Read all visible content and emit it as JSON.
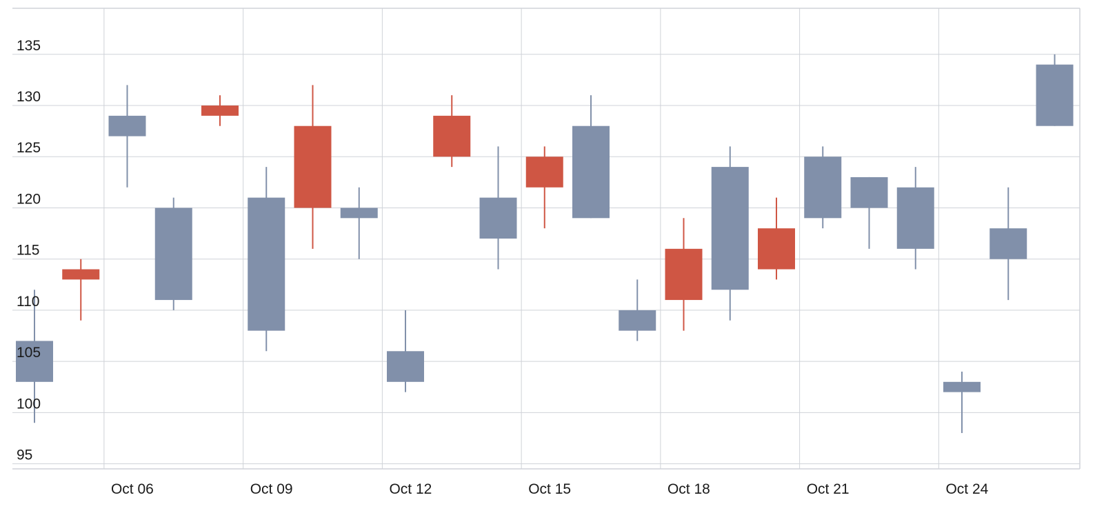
{
  "chart_data": {
    "type": "candlestick",
    "title": "",
    "xlabel": "",
    "ylabel": "",
    "ylim": [
      94.5,
      139.5
    ],
    "grid": true,
    "colors": {
      "up": "#8190AA",
      "down": "#CF5644",
      "grid": "#cfd2d8",
      "axis_text": "#1a1a1a"
    },
    "y_ticks": [
      {
        "value": 95,
        "label": "95"
      },
      {
        "value": 100,
        "label": "100"
      },
      {
        "value": 105,
        "label": "105"
      },
      {
        "value": 110,
        "label": "110"
      },
      {
        "value": 115,
        "label": "115"
      },
      {
        "value": 120,
        "label": "120"
      },
      {
        "value": 125,
        "label": "125"
      },
      {
        "value": 130,
        "label": "130"
      },
      {
        "value": 135,
        "label": "135"
      }
    ],
    "x_ticks": [
      {
        "date": "Oct 06",
        "label": "Oct 06"
      },
      {
        "date": "Oct 09",
        "label": "Oct 09"
      },
      {
        "date": "Oct 12",
        "label": "Oct 12"
      },
      {
        "date": "Oct 15",
        "label": "Oct 15"
      },
      {
        "date": "Oct 18",
        "label": "Oct 18"
      },
      {
        "date": "Oct 21",
        "label": "Oct 21"
      },
      {
        "date": "Oct 24",
        "label": "Oct 24"
      }
    ],
    "x_range": [
      "Oct 04",
      "Oct 27"
    ],
    "candles": [
      {
        "date": "Oct 04",
        "open": 103,
        "high": 112,
        "low": 99,
        "close": 107
      },
      {
        "date": "Oct 05",
        "open": 114,
        "high": 115,
        "low": 109,
        "close": 113
      },
      {
        "date": "Oct 06",
        "open": 127,
        "high": 132,
        "low": 122,
        "close": 129
      },
      {
        "date": "Oct 07",
        "open": 111,
        "high": 121,
        "low": 110,
        "close": 120
      },
      {
        "date": "Oct 08",
        "open": 130,
        "high": 131,
        "low": 128,
        "close": 129
      },
      {
        "date": "Oct 09",
        "open": 108,
        "high": 124,
        "low": 106,
        "close": 121
      },
      {
        "date": "Oct 10",
        "open": 128,
        "high": 132,
        "low": 116,
        "close": 120
      },
      {
        "date": "Oct 11",
        "open": 119,
        "high": 122,
        "low": 115,
        "close": 120
      },
      {
        "date": "Oct 12",
        "open": 103,
        "high": 110,
        "low": 102,
        "close": 106
      },
      {
        "date": "Oct 13",
        "open": 129,
        "high": 131,
        "low": 124,
        "close": 125
      },
      {
        "date": "Oct 14",
        "open": 117,
        "high": 126,
        "low": 114,
        "close": 121
      },
      {
        "date": "Oct 15",
        "open": 125,
        "high": 126,
        "low": 118,
        "close": 122
      },
      {
        "date": "Oct 16",
        "open": 119,
        "high": 131,
        "low": 119,
        "close": 128
      },
      {
        "date": "Oct 17",
        "open": 108,
        "high": 113,
        "low": 107,
        "close": 110
      },
      {
        "date": "Oct 18",
        "open": 116,
        "high": 119,
        "low": 108,
        "close": 111
      },
      {
        "date": "Oct 19",
        "open": 112,
        "high": 126,
        "low": 109,
        "close": 124
      },
      {
        "date": "Oct 20",
        "open": 118,
        "high": 121,
        "low": 113,
        "close": 114
      },
      {
        "date": "Oct 21",
        "open": 119,
        "high": 126,
        "low": 118,
        "close": 125
      },
      {
        "date": "Oct 22",
        "open": 120,
        "high": 123,
        "low": 116,
        "close": 123
      },
      {
        "date": "Oct 23",
        "open": 116,
        "high": 124,
        "low": 114,
        "close": 122
      },
      {
        "date": "Oct 24",
        "open": 102,
        "high": 104,
        "low": 98,
        "close": 103
      },
      {
        "date": "Oct 25",
        "open": 115,
        "high": 122,
        "low": 111,
        "close": 118
      },
      {
        "date": "Oct 26",
        "open": 128,
        "high": 135,
        "low": 128,
        "close": 134
      }
    ]
  }
}
